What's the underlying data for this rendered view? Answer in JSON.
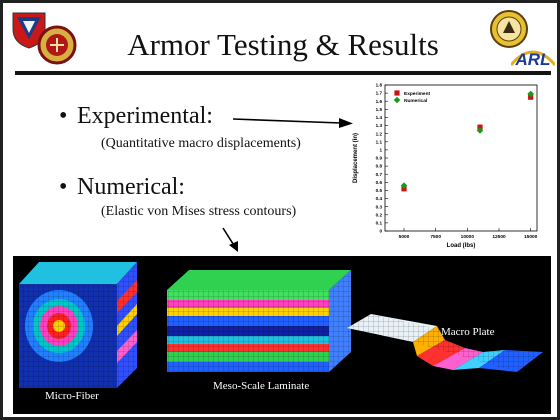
{
  "slide": {
    "title": "Armor Testing & Results",
    "bullets": [
      {
        "heading": "Experimental:",
        "sub": "(Quantitative macro displacements)"
      },
      {
        "heading": "Numerical:",
        "sub": "(Elastic von Mises stress contours)"
      }
    ],
    "bullet_glyph": "•",
    "images": [
      {
        "caption": "Micro-Fiber"
      },
      {
        "caption": "Meso-Scale Laminate"
      },
      {
        "caption": "Macro Plate"
      }
    ],
    "logos": {
      "arl_text": "ARL"
    }
  },
  "chart_data": {
    "type": "scatter",
    "xlabel": "Load (lbs)",
    "ylabel": "Displacement (in)",
    "xlim": [
      3500,
      15500
    ],
    "ylim": [
      0,
      1.8
    ],
    "x_ticks": [
      "5000",
      "7500",
      "10000",
      "12500",
      "15000"
    ],
    "y_ticks": [
      "0",
      "0.1",
      "0.2",
      "0.3",
      "0.4",
      "0.5",
      "0.6",
      "0.7",
      "0.8",
      "0.9",
      "1",
      "1.1",
      "1.2",
      "1.3",
      "1.4",
      "1.5",
      "1.6",
      "1.7",
      "1.8"
    ],
    "legend_position": "top-left",
    "series": [
      {
        "name": "Experiment",
        "marker": "square",
        "color": "#d01010",
        "points": [
          [
            5000,
            0.52
          ],
          [
            11000,
            1.28
          ],
          [
            15000,
            1.65
          ]
        ]
      },
      {
        "name": "Numerical",
        "marker": "diamond",
        "color": "#1a9a1a",
        "points": [
          [
            5000,
            0.56
          ],
          [
            11000,
            1.24
          ],
          [
            15000,
            1.69
          ]
        ]
      }
    ]
  }
}
